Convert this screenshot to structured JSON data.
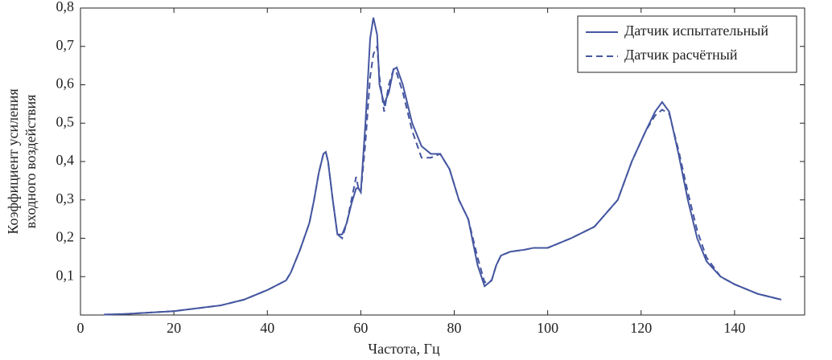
{
  "chart_data": {
    "type": "line",
    "xlabel": "Частота, Гц",
    "ylabel": [
      "Коэффициент усиления",
      "входного воздействия"
    ],
    "x": [
      5,
      10,
      20,
      30,
      35,
      40,
      44,
      45,
      47,
      49,
      50,
      51,
      52,
      52.5,
      53,
      54,
      55,
      56,
      57,
      58,
      59,
      59.5,
      60,
      61,
      62,
      62.7,
      63.5,
      64,
      65,
      66,
      67,
      67.7,
      69,
      71,
      73,
      75,
      77,
      79,
      81,
      83,
      85,
      86.5,
      88,
      89,
      90,
      92,
      95,
      97,
      100,
      105,
      110,
      115,
      118,
      121,
      123,
      124.5,
      126,
      128,
      130,
      132,
      134,
      137,
      140,
      145,
      150
    ],
    "series": [
      {
        "name": "Датчик испытательный",
        "color": "#4657a0",
        "dash": false,
        "values": [
          0.001,
          0.003,
          0.01,
          0.025,
          0.04,
          0.065,
          0.09,
          0.11,
          0.17,
          0.24,
          0.3,
          0.37,
          0.42,
          0.425,
          0.4,
          0.3,
          0.21,
          0.21,
          0.24,
          0.29,
          0.33,
          0.33,
          0.32,
          0.5,
          0.72,
          0.775,
          0.73,
          0.6,
          0.55,
          0.58,
          0.64,
          0.645,
          0.6,
          0.5,
          0.44,
          0.42,
          0.42,
          0.38,
          0.3,
          0.25,
          0.13,
          0.075,
          0.09,
          0.13,
          0.155,
          0.165,
          0.17,
          0.175,
          0.175,
          0.2,
          0.23,
          0.3,
          0.4,
          0.48,
          0.53,
          0.555,
          0.53,
          0.42,
          0.3,
          0.2,
          0.14,
          0.1,
          0.08,
          0.055,
          0.04
        ]
      },
      {
        "name": "Датчик расчётный",
        "color": "#4657a0",
        "dash": true,
        "values": [
          0.001,
          0.003,
          0.01,
          0.025,
          0.04,
          0.065,
          0.09,
          0.11,
          0.17,
          0.24,
          0.3,
          0.37,
          0.42,
          0.425,
          0.4,
          0.3,
          0.21,
          0.2,
          0.24,
          0.3,
          0.36,
          0.33,
          0.32,
          0.45,
          0.62,
          0.68,
          0.7,
          0.62,
          0.53,
          0.6,
          0.64,
          0.63,
          0.58,
          0.48,
          0.41,
          0.41,
          0.42,
          0.38,
          0.3,
          0.25,
          0.15,
          0.085,
          0.09,
          0.13,
          0.155,
          0.165,
          0.17,
          0.175,
          0.175,
          0.2,
          0.23,
          0.3,
          0.4,
          0.48,
          0.52,
          0.535,
          0.525,
          0.43,
          0.32,
          0.22,
          0.15,
          0.1,
          0.08,
          0.055,
          0.04
        ]
      }
    ],
    "xlim": [
      0,
      155
    ],
    "ylim": [
      0,
      0.8
    ],
    "xticks": [
      0,
      20,
      40,
      60,
      80,
      100,
      120,
      140
    ],
    "yticks": [
      {
        "value": 0.1,
        "label": "0,1"
      },
      {
        "value": 0.2,
        "label": "0,2"
      },
      {
        "value": 0.3,
        "label": "0,3"
      },
      {
        "value": 0.4,
        "label": "0,4"
      },
      {
        "value": 0.5,
        "label": "0,5"
      },
      {
        "value": 0.6,
        "label": "0,6"
      },
      {
        "value": 0.7,
        "label": "0,7"
      },
      {
        "value": 0.8,
        "label": "0,8"
      }
    ],
    "legend": "upper right"
  }
}
